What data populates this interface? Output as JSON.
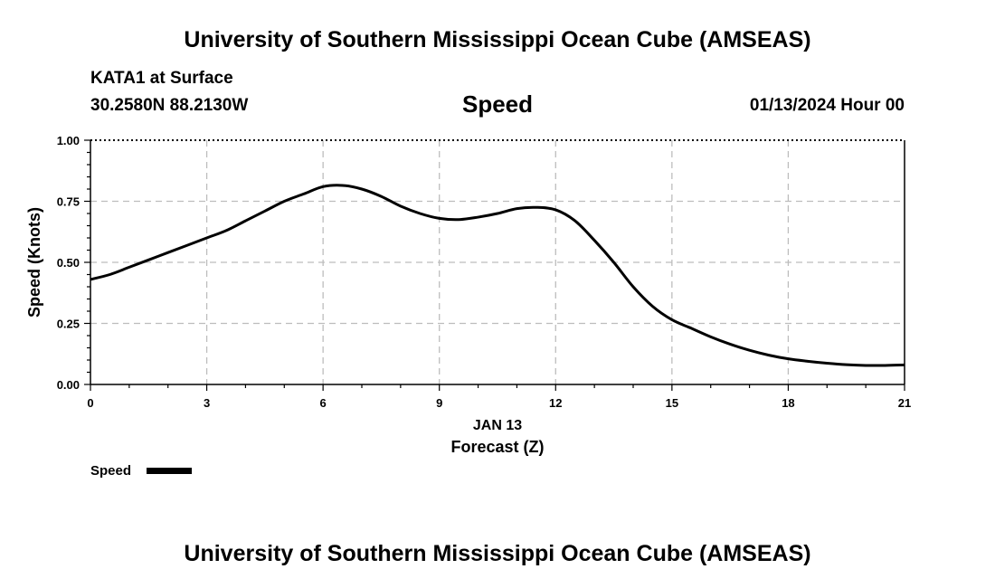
{
  "page": {
    "title_top": "University of Southern Mississippi Ocean Cube (AMSEAS)",
    "title_bottom": "University of Southern Mississippi Ocean Cube (AMSEAS)",
    "station": "KATA1 at Surface",
    "coordinates": "30.2580N  88.2130W",
    "date_time": "01/13/2024 Hour 00"
  },
  "chart_data": {
    "type": "line",
    "title": "Speed",
    "xlabel": "Forecast (Z)",
    "date_label": "JAN 13",
    "ylabel": "Speed (Knots)",
    "xlim": [
      0,
      21
    ],
    "ylim": [
      0,
      1
    ],
    "x_ticks": [
      "0",
      "3",
      "6",
      "9",
      "12",
      "15",
      "18",
      "21"
    ],
    "x_tick_values": [
      0,
      3,
      6,
      9,
      12,
      15,
      18,
      21
    ],
    "y_ticks": [
      "0.00",
      "0.25",
      "0.50",
      "0.75",
      "1.00"
    ],
    "y_tick_values": [
      0,
      0.25,
      0.5,
      0.75,
      1.0
    ],
    "grid": true,
    "legend": [
      {
        "label": "Speed",
        "color": "#000000"
      }
    ],
    "series": [
      {
        "name": "Speed",
        "color": "#000000",
        "x": [
          0,
          0.5,
          1,
          1.5,
          2,
          2.5,
          3,
          3.5,
          4,
          4.5,
          5,
          5.5,
          6,
          6.5,
          7,
          7.5,
          8,
          8.5,
          9,
          9.5,
          10,
          10.5,
          11,
          11.5,
          12,
          12.5,
          13,
          13.5,
          14,
          14.5,
          15,
          15.5,
          16,
          16.5,
          17,
          17.5,
          18,
          18.5,
          19,
          19.5,
          20,
          20.5,
          21
        ],
        "values": [
          0.43,
          0.45,
          0.48,
          0.51,
          0.54,
          0.57,
          0.6,
          0.63,
          0.67,
          0.71,
          0.75,
          0.78,
          0.81,
          0.815,
          0.8,
          0.77,
          0.73,
          0.7,
          0.68,
          0.675,
          0.685,
          0.7,
          0.72,
          0.725,
          0.715,
          0.67,
          0.59,
          0.5,
          0.4,
          0.32,
          0.265,
          0.23,
          0.195,
          0.165,
          0.14,
          0.12,
          0.105,
          0.095,
          0.087,
          0.081,
          0.078,
          0.078,
          0.08
        ]
      }
    ]
  }
}
